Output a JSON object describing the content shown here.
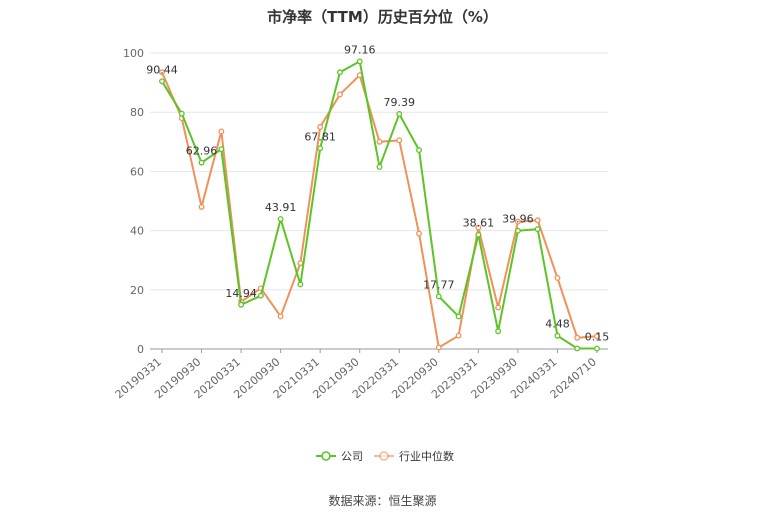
{
  "chart_data": {
    "type": "line",
    "title": "市净率（TTM）历史百分位（%）",
    "source": "数据来源：恒生聚源",
    "ylim": [
      0,
      100
    ],
    "yticks": [
      0,
      20,
      40,
      60,
      80,
      100
    ],
    "grid": true,
    "legend_placement": "bottom",
    "xtick_labels": [
      "20190331",
      "20190930",
      "20200331",
      "20200930",
      "20210331",
      "20210930",
      "20220331",
      "20220930",
      "20230331",
      "20230930",
      "20240331",
      "20240710"
    ],
    "x": [
      "20190331",
      "20190630",
      "20190930",
      "20191231",
      "20200331",
      "20200630",
      "20200930",
      "20201231",
      "20210331",
      "20210630",
      "20210930",
      "20211231",
      "20220331",
      "20220630",
      "20220930",
      "20221231",
      "20230331",
      "20230630",
      "20230930",
      "20231231",
      "20240331",
      "20240630",
      "20240710"
    ],
    "series": [
      {
        "name": "公司",
        "color": "#5cc427",
        "values": [
          90.44,
          79.5,
          62.96,
          67.5,
          14.94,
          18.0,
          43.91,
          21.8,
          67.81,
          93.5,
          97.16,
          61.5,
          79.39,
          67.2,
          17.77,
          11.0,
          38.61,
          6.0,
          39.96,
          40.5,
          4.48,
          0.2,
          0.15
        ]
      },
      {
        "name": "行业中位数",
        "color": "#f0915a",
        "values": [
          93.5,
          78.0,
          48.0,
          73.5,
          16.0,
          20.5,
          11.0,
          29.0,
          75.0,
          86.0,
          92.5,
          70.0,
          70.5,
          39.0,
          0.5,
          4.5,
          41.0,
          14.0,
          43.0,
          43.5,
          24.0,
          3.8,
          4.3
        ]
      }
    ],
    "data_labels": [
      {
        "series": 0,
        "index": 0,
        "text": "90.44"
      },
      {
        "series": 0,
        "index": 2,
        "text": "62.96"
      },
      {
        "series": 0,
        "index": 4,
        "text": "14.94"
      },
      {
        "series": 0,
        "index": 6,
        "text": "43.91"
      },
      {
        "series": 0,
        "index": 8,
        "text": "67.81"
      },
      {
        "series": 0,
        "index": 10,
        "text": "97.16"
      },
      {
        "series": 0,
        "index": 12,
        "text": "79.39"
      },
      {
        "series": 0,
        "index": 14,
        "text": "17.77"
      },
      {
        "series": 0,
        "index": 16,
        "text": "38.61"
      },
      {
        "series": 0,
        "index": 18,
        "text": "39.96"
      },
      {
        "series": 0,
        "index": 20,
        "text": "4.48"
      },
      {
        "series": 0,
        "index": 22,
        "text": "0.15"
      }
    ]
  }
}
